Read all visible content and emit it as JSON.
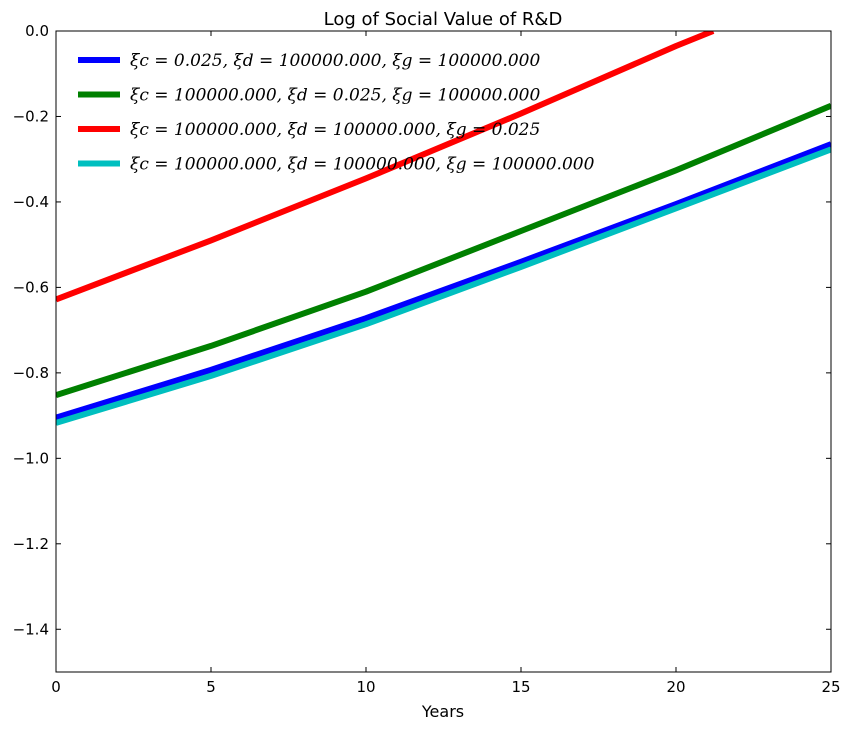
{
  "chart_data": {
    "type": "line",
    "title": "Log of Social Value of R&D",
    "xlabel": "Years",
    "ylabel": "",
    "xlim": [
      0,
      25
    ],
    "ylim": [
      -1.5,
      0.0
    ],
    "xticks": [
      0,
      5,
      10,
      15,
      20,
      25
    ],
    "yticks": [
      0.0,
      -0.2,
      -0.4,
      -0.6,
      -0.8,
      -1.0,
      -1.2,
      -1.4
    ],
    "ytick_labels": [
      "0.0",
      "−0.2",
      "−0.4",
      "−0.6",
      "−0.8",
      "−1.0",
      "−1.2",
      "−1.4"
    ],
    "grid": false,
    "legend_position": "top-left",
    "series": [
      {
        "name": "ξc = 0.025, ξd = 100000.000, ξg = 100000.000",
        "color": "#0000ff",
        "x": [
          0,
          5,
          10,
          15,
          20,
          25
        ],
        "y": [
          -0.905,
          -0.793,
          -0.672,
          -0.54,
          -0.405,
          -0.265
        ]
      },
      {
        "name": "ξc = 100000.000, ξd = 0.025, ξg = 100000.000",
        "color": "#008000",
        "x": [
          0,
          5,
          10,
          15,
          20,
          25
        ],
        "y": [
          -0.852,
          -0.737,
          -0.61,
          -0.468,
          -0.326,
          -0.175
        ]
      },
      {
        "name": "ξc = 100000.000, ξd = 100000.000, ξg = 0.025",
        "color": "#ff0000",
        "x": [
          0,
          5,
          10,
          15,
          20,
          21.2
        ],
        "y": [
          -0.628,
          -0.49,
          -0.345,
          -0.193,
          -0.035,
          0.0
        ]
      },
      {
        "name": "ξc = 100000.000, ξd = 100000.000, ξg = 100000.000",
        "color": "#00bfbf",
        "x": [
          0,
          5,
          10,
          15,
          20,
          25
        ],
        "y": [
          -0.917,
          -0.807,
          -0.686,
          -0.552,
          -0.415,
          -0.277
        ]
      }
    ]
  }
}
